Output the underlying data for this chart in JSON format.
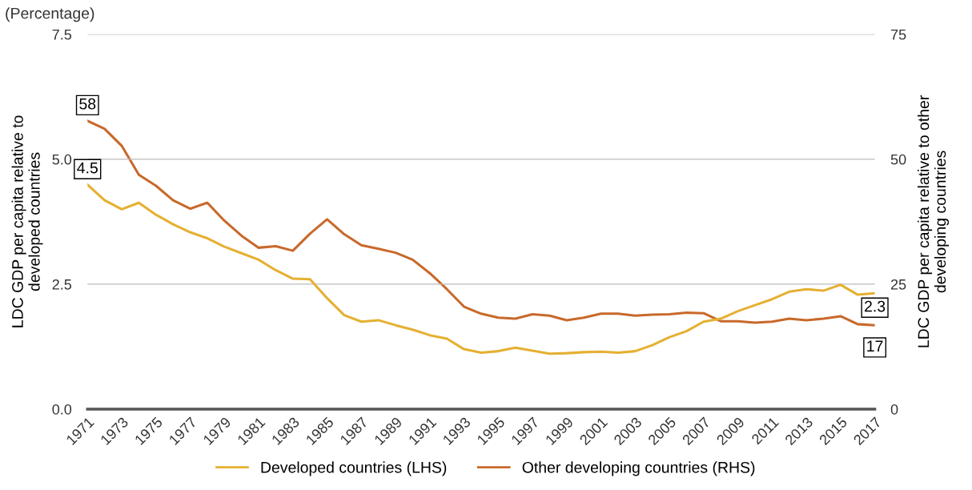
{
  "chart_data": {
    "type": "line",
    "subtitle": "(Percentage)",
    "ylabel": "LDC GDP per capita relative to\ndeveloped countries",
    "y2label": "LDC GDP per capita relative to other\ndeveloping countries",
    "x": [
      1971,
      1972,
      1973,
      1974,
      1975,
      1976,
      1977,
      1978,
      1979,
      1980,
      1981,
      1982,
      1983,
      1984,
      1985,
      1986,
      1987,
      1988,
      1989,
      1990,
      1991,
      1992,
      1993,
      1994,
      1995,
      1996,
      1997,
      1998,
      1999,
      2000,
      2001,
      2002,
      2003,
      2004,
      2005,
      2006,
      2007,
      2008,
      2009,
      2010,
      2011,
      2012,
      2013,
      2014,
      2015,
      2016,
      2017
    ],
    "series": [
      {
        "name": "Developed countries (LHS)",
        "color": "#e5b032",
        "values": [
          4.49,
          4.18,
          4.0,
          4.13,
          3.89,
          3.7,
          3.54,
          3.42,
          3.25,
          3.12,
          2.99,
          2.78,
          2.61,
          2.6,
          2.22,
          1.88,
          1.75,
          1.78,
          1.68,
          1.59,
          1.48,
          1.41,
          1.2,
          1.13,
          1.16,
          1.23,
          1.17,
          1.11,
          1.12,
          1.14,
          1.15,
          1.13,
          1.16,
          1.28,
          1.44,
          1.56,
          1.75,
          1.81,
          1.96,
          2.08,
          2.2,
          2.35,
          2.4,
          2.37,
          2.49,
          2.29,
          2.32
        ],
        "value_labels": [
          "4.5",
          null,
          null,
          null,
          null,
          null,
          null,
          null,
          null,
          null,
          null,
          null,
          null,
          null,
          null,
          null,
          null,
          null,
          null,
          null,
          null,
          null,
          null,
          null,
          null,
          null,
          null,
          null,
          null,
          null,
          null,
          null,
          null,
          null,
          null,
          null,
          null,
          null,
          null,
          null,
          null,
          null,
          null,
          null,
          null,
          null,
          "2.3"
        ]
      },
      {
        "name": "Other developing countries (RHS)",
        "color": "#c8692b",
        "axis": "y2",
        "values": [
          57.7,
          56.1,
          52.7,
          46.9,
          44.7,
          41.8,
          40.1,
          41.3,
          37.7,
          34.7,
          32.3,
          32.6,
          31.7,
          35.1,
          38.0,
          35.0,
          32.8,
          32.1,
          31.3,
          29.9,
          27.2,
          24.0,
          20.5,
          19.1,
          18.3,
          18.1,
          19.0,
          18.7,
          17.8,
          18.3,
          19.1,
          19.1,
          18.7,
          18.9,
          19.0,
          19.3,
          19.2,
          17.6,
          17.6,
          17.3,
          17.5,
          18.1,
          17.8,
          18.1,
          18.6,
          17.0,
          16.8
        ],
        "value_labels": [
          "58",
          null,
          null,
          null,
          null,
          null,
          null,
          null,
          null,
          null,
          null,
          null,
          null,
          null,
          null,
          null,
          null,
          null,
          null,
          null,
          null,
          null,
          null,
          null,
          null,
          null,
          null,
          null,
          null,
          null,
          null,
          null,
          null,
          null,
          null,
          null,
          null,
          null,
          null,
          null,
          null,
          null,
          null,
          null,
          null,
          null,
          "17"
        ]
      }
    ],
    "xlim": [
      1971,
      2017
    ],
    "xticks": [
      1971,
      1973,
      1975,
      1977,
      1979,
      1981,
      1983,
      1985,
      1987,
      1989,
      1991,
      1993,
      1995,
      1997,
      1999,
      2001,
      2003,
      2005,
      2007,
      2009,
      2011,
      2013,
      2015,
      2017
    ],
    "ylim": [
      0,
      7.5
    ],
    "yticks": [
      {
        "value": 0,
        "label": "0.0"
      },
      {
        "value": 2.5,
        "label": "2.5"
      },
      {
        "value": 5,
        "label": "5.0"
      },
      {
        "value": 7.5,
        "label": "7.5"
      }
    ],
    "y2lim": [
      0,
      75
    ],
    "y2ticks": [
      0,
      25,
      50,
      75
    ],
    "grid": "y",
    "legend": "bottom",
    "marker": "none",
    "line_style": "solid"
  }
}
